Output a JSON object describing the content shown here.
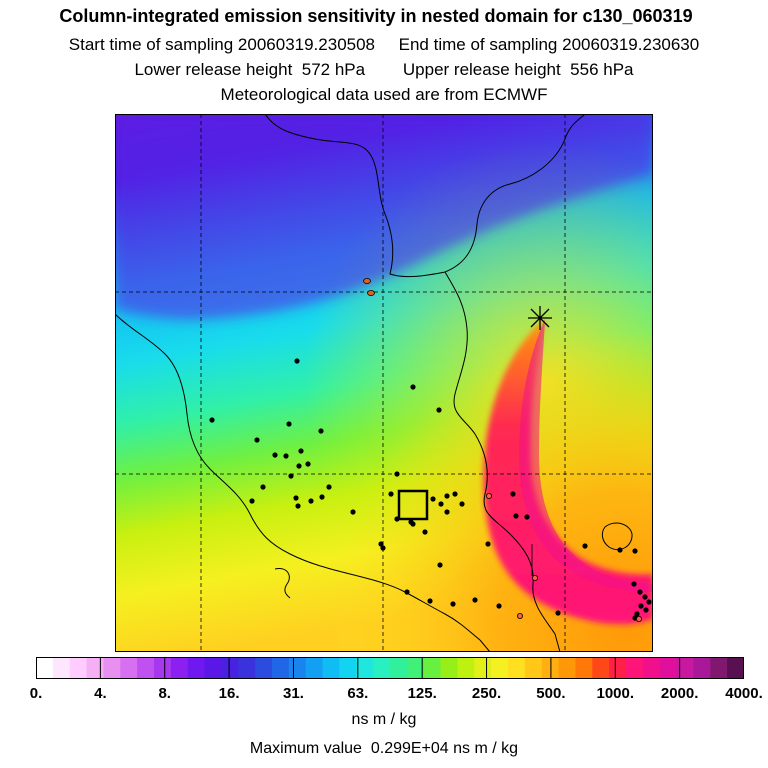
{
  "title": "Column-integrated emission sensitivity in nested domain for c130_060319",
  "sampling": {
    "start_label": "Start time of sampling",
    "start_value": "20060319.230508",
    "end_label": "End time of sampling",
    "end_value": "20060319.230630"
  },
  "release": {
    "lower_label": "Lower release height",
    "lower_value": "572 hPa",
    "upper_label": "Upper release height",
    "upper_value": "556 hPa"
  },
  "met_note": "Meteorological data used are from ECMWF",
  "colorbar": {
    "colors": [
      "#ffffff",
      "#ffe6ff",
      "#ffccff",
      "#f5b0f5",
      "#e890f0",
      "#d670f0",
      "#c050f0",
      "#a838f0",
      "#8c20f0",
      "#7018f0",
      "#5a18e8",
      "#4822e0",
      "#3a32dc",
      "#2c4ce0",
      "#2066e6",
      "#1a84ee",
      "#14a0f2",
      "#10bcf4",
      "#12d4f0",
      "#20e6e0",
      "#28f0c0",
      "#30f09c",
      "#40f078",
      "#68f040",
      "#96f018",
      "#bef010",
      "#e0f018",
      "#f5f020",
      "#ffe020",
      "#ffc818",
      "#ffb010",
      "#ff9808",
      "#ff7808",
      "#ff4818",
      "#ff2048",
      "#ff1478",
      "#f0108c",
      "#e0109c",
      "#c818a0",
      "#a81898",
      "#801870",
      "#581050"
    ],
    "tick_labels": [
      "0.",
      "4.",
      "8.",
      "16.",
      "31.",
      "63.",
      "125.",
      "250.",
      "500.",
      "1000.",
      "2000.",
      "4000."
    ],
    "units": "ns m / kg"
  },
  "maximum": {
    "label": "Maximum value",
    "value": "0.299E+04",
    "units": "ns m / kg"
  },
  "map": {
    "release_marker_icon": "asterisk-release-icon",
    "station_markers_icon": "black-dot-icon",
    "domain_box_icon": "square-outline-icon"
  }
}
